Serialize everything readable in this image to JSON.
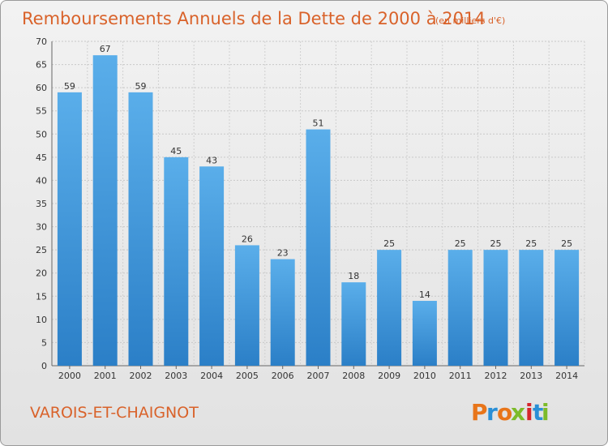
{
  "chart_data": {
    "type": "bar",
    "title": "Remboursements Annuels de la Dette de 2000 à 2014",
    "unit_note": "(en milliers d'€)",
    "categories": [
      "2000",
      "2001",
      "2002",
      "2003",
      "2004",
      "2005",
      "2006",
      "2007",
      "2008",
      "2009",
      "2010",
      "2011",
      "2012",
      "2013",
      "2014"
    ],
    "values": [
      59,
      67,
      59,
      45,
      43,
      26,
      23,
      51,
      18,
      25,
      14,
      25,
      25,
      25,
      25
    ],
    "ylim": [
      0,
      70
    ],
    "yticks": [
      0,
      5,
      10,
      15,
      20,
      25,
      30,
      35,
      40,
      45,
      50,
      55,
      60,
      65,
      70
    ],
    "xlabel": "",
    "ylabel": "",
    "grid": true,
    "bar_color": "#4a9fe0",
    "bar_color_dark": "#2d7bc4"
  },
  "footer": {
    "commune": "VAROIS-ET-CHAIGNOT",
    "logo_text": "Proxiti",
    "logo_colors": [
      "#e8751a",
      "#2a8fd6",
      "#e8751a",
      "#7dbb2a",
      "#d6262c",
      "#2a8fd6",
      "#7dbb2a"
    ]
  }
}
